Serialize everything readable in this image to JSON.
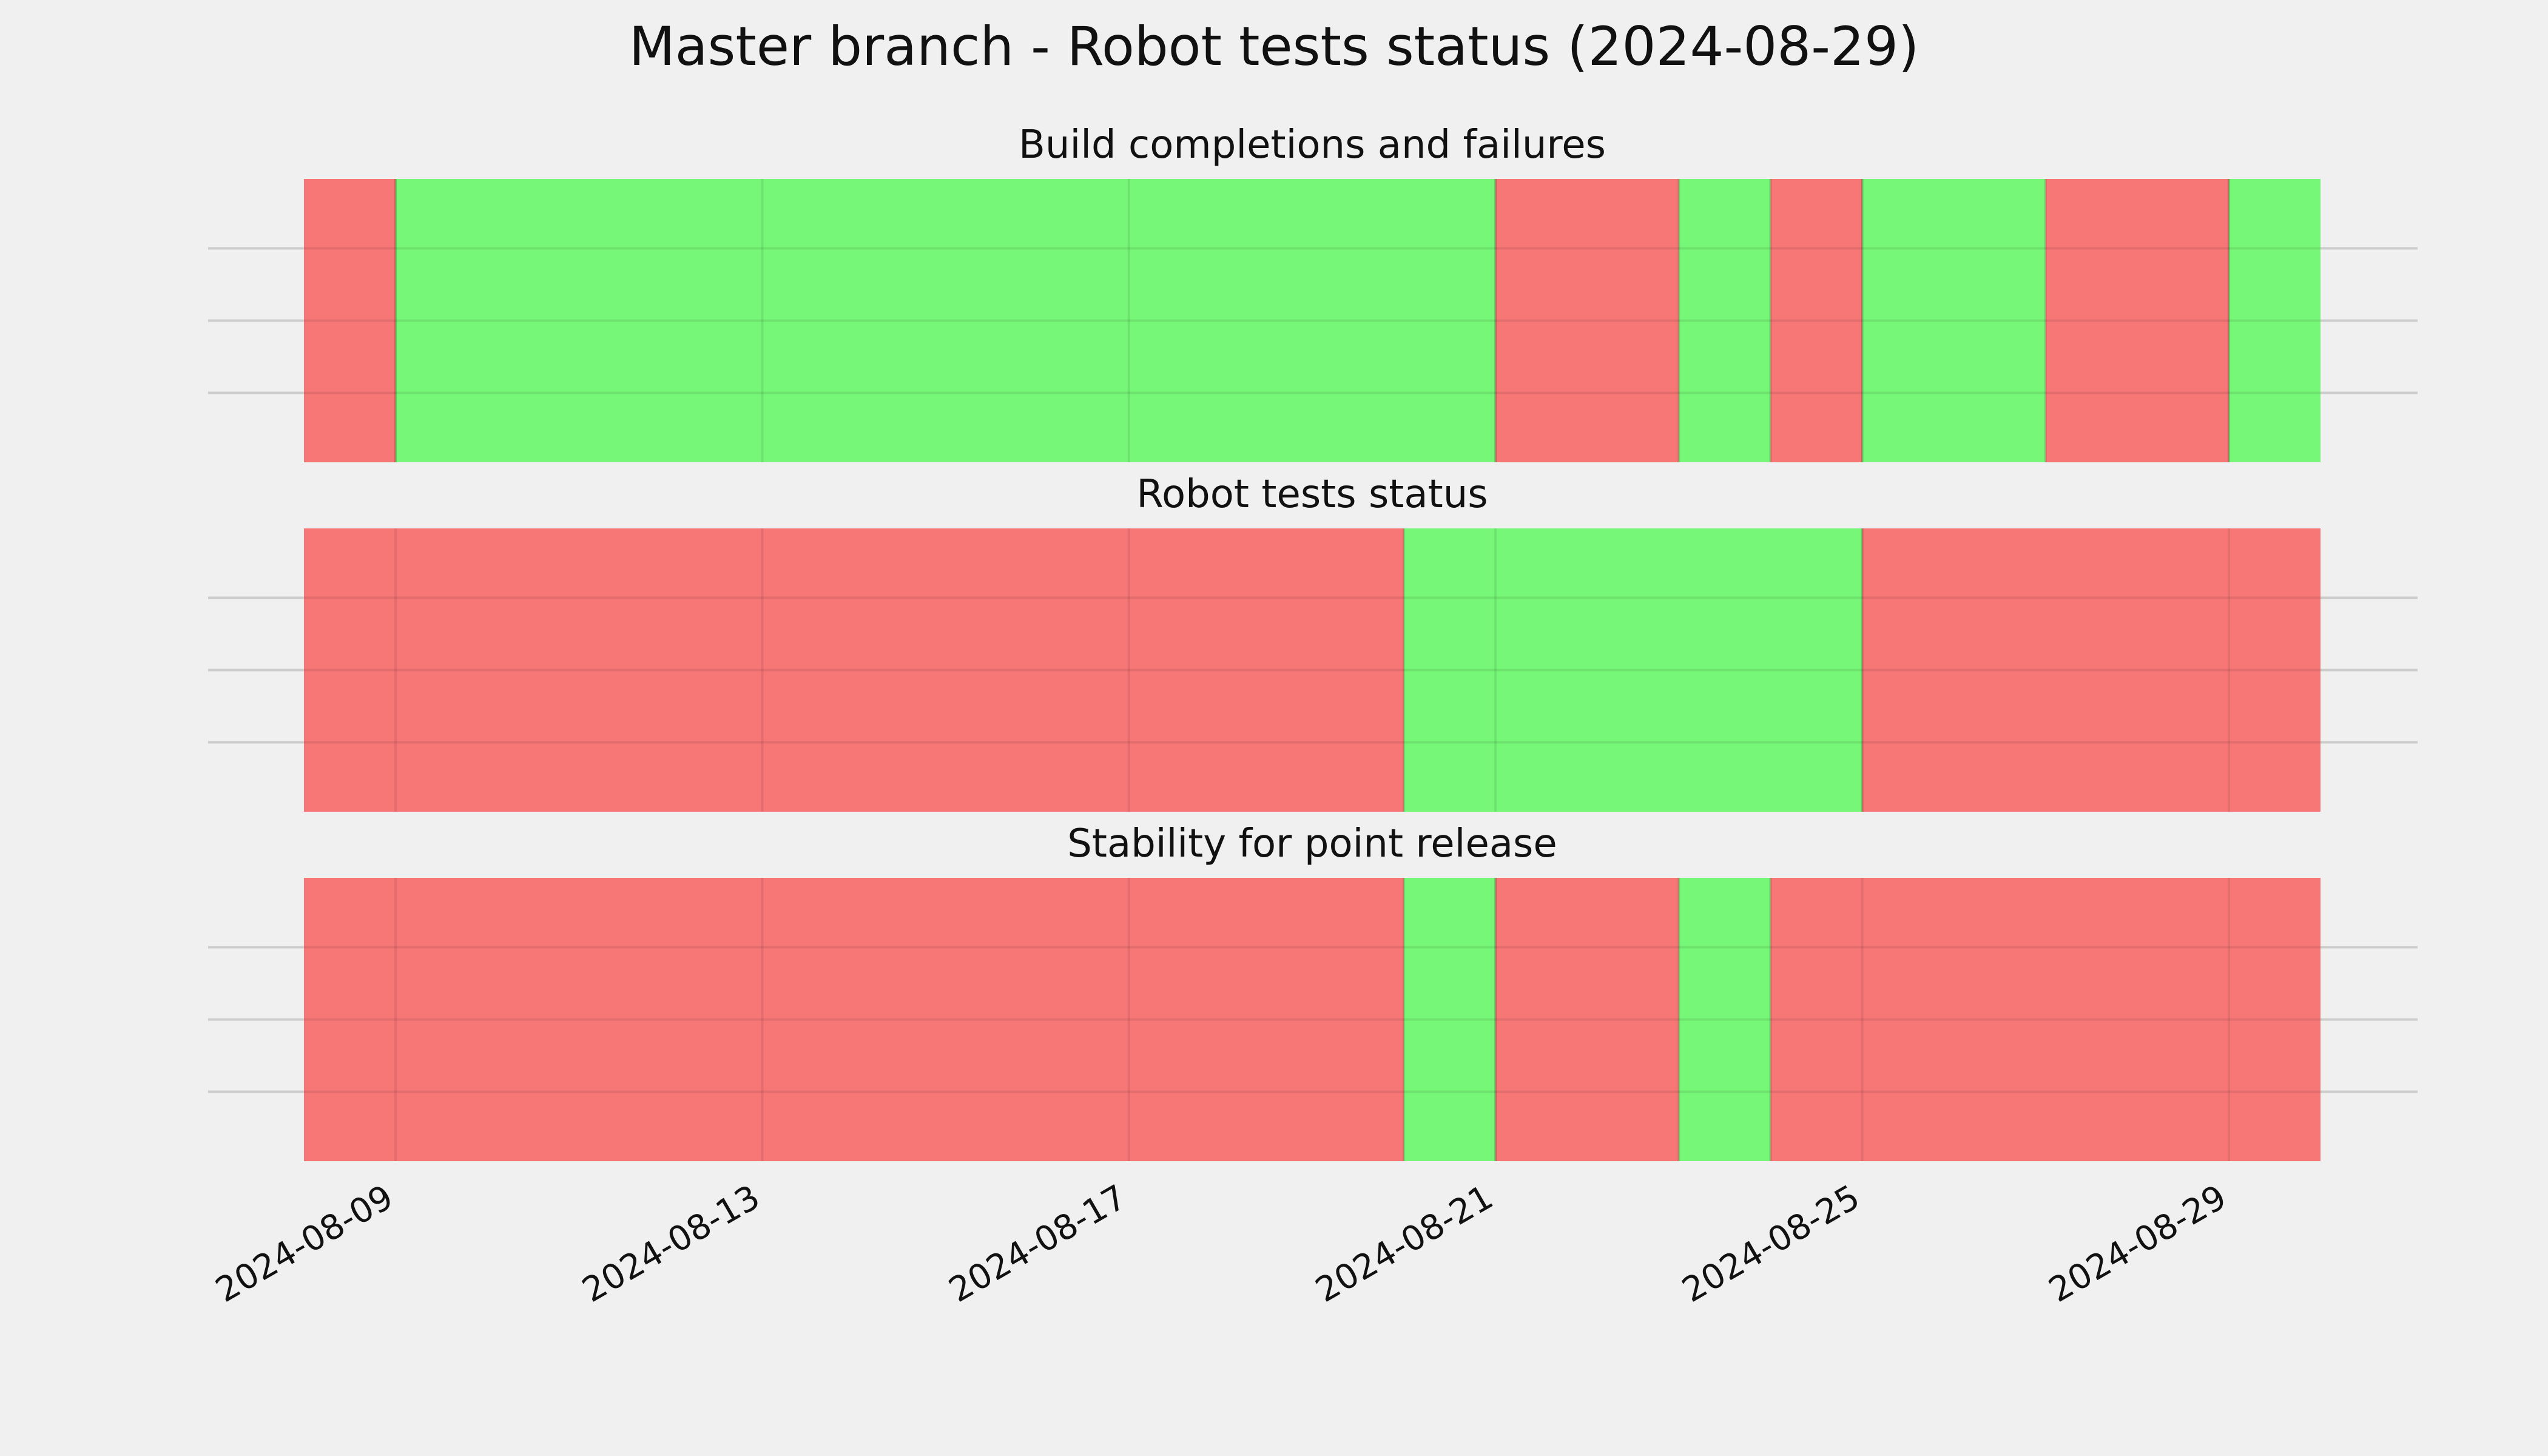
{
  "chart_data": {
    "type": "timeline",
    "title": "Master branch - Robot tests status (2024-08-29)",
    "x_range": [
      "2024-08-08",
      "2024-08-30"
    ],
    "x_ticks": [
      "2024-08-09",
      "2024-08-13",
      "2024-08-17",
      "2024-08-21",
      "2024-08-25",
      "2024-08-29"
    ],
    "grid": true,
    "colors": {
      "pass": "#77f777",
      "fail": "#f77777",
      "background": "#f0f0f0",
      "grid": "#cccccc"
    },
    "panels": [
      {
        "title": "Build completions and failures",
        "segments": [
          {
            "start": "2024-08-08",
            "end": "2024-08-09",
            "status": "fail"
          },
          {
            "start": "2024-08-09",
            "end": "2024-08-21",
            "status": "pass"
          },
          {
            "start": "2024-08-21",
            "end": "2024-08-23",
            "status": "fail"
          },
          {
            "start": "2024-08-23",
            "end": "2024-08-24",
            "status": "pass"
          },
          {
            "start": "2024-08-24",
            "end": "2024-08-25",
            "status": "fail"
          },
          {
            "start": "2024-08-25",
            "end": "2024-08-27",
            "status": "pass"
          },
          {
            "start": "2024-08-27",
            "end": "2024-08-29",
            "status": "fail"
          },
          {
            "start": "2024-08-29",
            "end": "2024-08-30",
            "status": "pass"
          }
        ]
      },
      {
        "title": "Robot tests status",
        "segments": [
          {
            "start": "2024-08-08",
            "end": "2024-08-20",
            "status": "fail"
          },
          {
            "start": "2024-08-20",
            "end": "2024-08-25",
            "status": "pass"
          },
          {
            "start": "2024-08-25",
            "end": "2024-08-30",
            "status": "fail"
          }
        ]
      },
      {
        "title": "Stability for point release",
        "segments": [
          {
            "start": "2024-08-08",
            "end": "2024-08-20",
            "status": "fail"
          },
          {
            "start": "2024-08-20",
            "end": "2024-08-21",
            "status": "pass"
          },
          {
            "start": "2024-08-21",
            "end": "2024-08-23",
            "status": "fail"
          },
          {
            "start": "2024-08-23",
            "end": "2024-08-24",
            "status": "pass"
          },
          {
            "start": "2024-08-24",
            "end": "2024-08-30",
            "status": "fail"
          }
        ]
      }
    ]
  }
}
